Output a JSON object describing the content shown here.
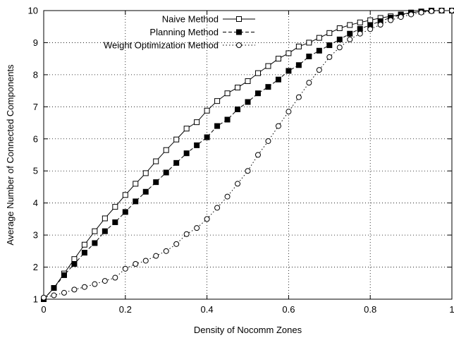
{
  "chart_data": {
    "type": "line",
    "title": "",
    "xlabel": "Density of Nocomm Zones",
    "ylabel": "Average Number of Connected Components",
    "xlim": [
      0,
      1
    ],
    "ylim": [
      1,
      10
    ],
    "xticks": [
      0,
      0.2,
      0.4,
      0.6,
      0.8,
      1
    ],
    "xtick_labels": [
      "0",
      "0.2",
      "0.4",
      "0.6",
      "0.8",
      "1"
    ],
    "yticks": [
      1,
      2,
      3,
      4,
      5,
      6,
      7,
      8,
      9,
      10
    ],
    "ytick_labels": [
      "1",
      "2",
      "3",
      "4",
      "5",
      "6",
      "7",
      "8",
      "9",
      "10"
    ],
    "grid": true,
    "legend_position": "top-left",
    "x": [
      0,
      0.025,
      0.05,
      0.075,
      0.1,
      0.125,
      0.15,
      0.175,
      0.2,
      0.225,
      0.25,
      0.275,
      0.3,
      0.325,
      0.35,
      0.375,
      0.4,
      0.425,
      0.45,
      0.475,
      0.5,
      0.525,
      0.55,
      0.575,
      0.6,
      0.625,
      0.65,
      0.675,
      0.7,
      0.725,
      0.75,
      0.775,
      0.8,
      0.825,
      0.85,
      0.875,
      0.9,
      0.925,
      0.95,
      0.975,
      1.0
    ],
    "series": [
      {
        "name": "Naive Method",
        "marker": "open-square",
        "line": "solid",
        "values": [
          1.0,
          1.35,
          1.8,
          2.25,
          2.7,
          3.12,
          3.52,
          3.88,
          4.25,
          4.6,
          4.93,
          5.3,
          5.65,
          5.98,
          6.32,
          6.52,
          6.88,
          7.18,
          7.42,
          7.6,
          7.8,
          8.05,
          8.27,
          8.5,
          8.67,
          8.88,
          9.0,
          9.15,
          9.3,
          9.45,
          9.55,
          9.63,
          9.7,
          9.77,
          9.82,
          9.88,
          9.94,
          9.97,
          10.0,
          10.0,
          10.0
        ]
      },
      {
        "name": "Planning Method",
        "marker": "filled-square",
        "line": "dashed",
        "values": [
          1.0,
          1.35,
          1.75,
          2.1,
          2.45,
          2.75,
          3.12,
          3.4,
          3.72,
          4.05,
          4.35,
          4.65,
          4.95,
          5.25,
          5.55,
          5.8,
          6.05,
          6.4,
          6.6,
          6.92,
          7.15,
          7.42,
          7.62,
          7.85,
          8.12,
          8.3,
          8.57,
          8.75,
          8.92,
          9.1,
          9.28,
          9.43,
          9.55,
          9.67,
          9.78,
          9.86,
          9.93,
          9.97,
          10.0,
          10.0,
          10.0
        ]
      },
      {
        "name": "Weight Optimization Method",
        "marker": "open-circle",
        "line": "dotted",
        "values": [
          1.05,
          1.12,
          1.2,
          1.3,
          1.38,
          1.47,
          1.57,
          1.67,
          1.95,
          2.1,
          2.2,
          2.35,
          2.5,
          2.72,
          3.03,
          3.22,
          3.5,
          3.85,
          4.2,
          4.6,
          5.0,
          5.5,
          5.93,
          6.4,
          6.85,
          7.3,
          7.75,
          8.15,
          8.55,
          8.85,
          9.1,
          9.28,
          9.42,
          9.56,
          9.7,
          9.8,
          9.88,
          9.94,
          9.98,
          10.0,
          10.0
        ]
      }
    ]
  }
}
